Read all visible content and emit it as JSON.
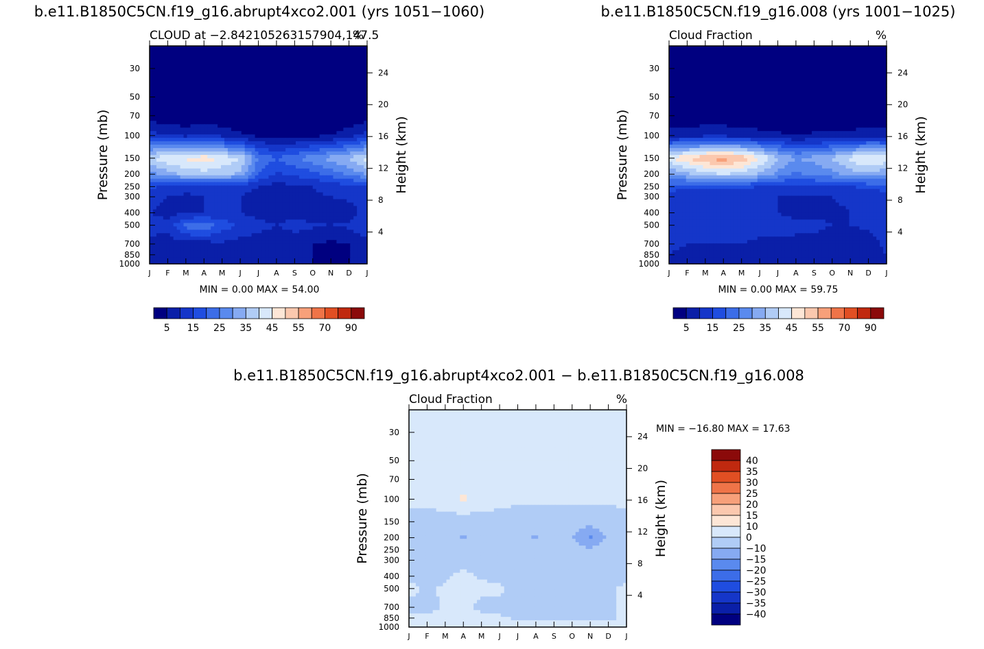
{
  "chart_data": [
    {
      "type": "heatmap",
      "id": "p1",
      "title": "b.e11.B1850C5CN.f19_g16.abrupt4xco2.001 (yrs 1051-1060)",
      "subtitle_left": "CLOUD at -2.842105263157904,147.5",
      "units": "%",
      "xlabel": "",
      "ylabel": "Pressure (mb)",
      "ylabel_right": "Height (km)",
      "x_ticks": [
        "J",
        "F",
        "M",
        "A",
        "M",
        "J",
        "J",
        "A",
        "S",
        "O",
        "N",
        "D",
        "J"
      ],
      "y_ticks": [
        "30",
        "50",
        "70",
        "100",
        "150",
        "200",
        "250",
        "300",
        "400",
        "500",
        "700",
        "850",
        "1000"
      ],
      "y_right_ticks": [
        "24",
        "20",
        "16",
        "12",
        "8",
        "4"
      ],
      "y_range_mb": [
        20,
        1000
      ],
      "stats": "MIN =    0.00  MAX =    54.00",
      "min": 0.0,
      "max": 54.0,
      "colorbar_labels": [
        "5",
        "15",
        "25",
        "35",
        "45",
        "55",
        "70",
        "90"
      ],
      "grid": [
        [
          0,
          0,
          0,
          0,
          0,
          0,
          0,
          0,
          0,
          0,
          0,
          0,
          0
        ],
        [
          0,
          0,
          0,
          0,
          0,
          0,
          0,
          0,
          0,
          0,
          0,
          0,
          0
        ],
        [
          2,
          1,
          0,
          1,
          0,
          0,
          0,
          0,
          0,
          0,
          0,
          0,
          2
        ],
        [
          12,
          10,
          9,
          11,
          9,
          6,
          4,
          3,
          3,
          4,
          5,
          8,
          12
        ],
        [
          40,
          44,
          46,
          48,
          44,
          40,
          25,
          20,
          24,
          28,
          32,
          36,
          42
        ],
        [
          28,
          33,
          36,
          38,
          36,
          34,
          20,
          14,
          16,
          18,
          22,
          26,
          30
        ],
        [
          16,
          14,
          12,
          12,
          14,
          12,
          10,
          8,
          9,
          10,
          12,
          13,
          14
        ],
        [
          11,
          10,
          9,
          10,
          12,
          10,
          8,
          6,
          8,
          9,
          10,
          11,
          11
        ],
        [
          10,
          9,
          9,
          10,
          11,
          10,
          8,
          7,
          8,
          6,
          5,
          8,
          12
        ],
        [
          12,
          11,
          22,
          24,
          18,
          14,
          12,
          10,
          12,
          11,
          10,
          11,
          14
        ],
        [
          9,
          8,
          8,
          8,
          9,
          8,
          7,
          6,
          7,
          5,
          4,
          5,
          8
        ],
        [
          8,
          7,
          7,
          8,
          8,
          7,
          7,
          6,
          6,
          5,
          4,
          5,
          7
        ],
        [
          5,
          5,
          5,
          5,
          5,
          5,
          5,
          5,
          5,
          5,
          5,
          5,
          5
        ]
      ]
    },
    {
      "type": "heatmap",
      "id": "p2",
      "title": "b.e11.B1850C5CN.f19_g16.008 (yrs 1001-1025)",
      "subtitle_left": "Cloud Fraction",
      "units": "%",
      "xlabel": "",
      "ylabel": "Pressure (mb)",
      "ylabel_right": "Height (km)",
      "x_ticks": [
        "J",
        "F",
        "M",
        "A",
        "M",
        "J",
        "J",
        "A",
        "S",
        "O",
        "N",
        "D",
        "J"
      ],
      "y_ticks": [
        "30",
        "50",
        "70",
        "100",
        "150",
        "200",
        "250",
        "300",
        "400",
        "500",
        "700",
        "850",
        "1000"
      ],
      "y_right_ticks": [
        "24",
        "20",
        "16",
        "12",
        "8",
        "4"
      ],
      "y_range_mb": [
        20,
        1000
      ],
      "stats": "MIN =    0.00  MAX =    59.75",
      "min": 0.0,
      "max": 59.75,
      "colorbar_labels": [
        "5",
        "15",
        "25",
        "35",
        "45",
        "55",
        "70",
        "90"
      ],
      "grid": [
        [
          0,
          0,
          0,
          0,
          0,
          0,
          0,
          0,
          0,
          0,
          0,
          0,
          0
        ],
        [
          0,
          0,
          0,
          0,
          0,
          0,
          0,
          0,
          0,
          0,
          0,
          0,
          0
        ],
        [
          1,
          1,
          1,
          1,
          1,
          0,
          0,
          0,
          0,
          0,
          0,
          0,
          1
        ],
        [
          8,
          8,
          9,
          9,
          8,
          7,
          6,
          5,
          6,
          6,
          7,
          8,
          8
        ],
        [
          44,
          50,
          55,
          58,
          54,
          46,
          36,
          30,
          32,
          36,
          42,
          46,
          44
        ],
        [
          30,
          34,
          38,
          40,
          38,
          34,
          28,
          24,
          26,
          28,
          32,
          34,
          30
        ],
        [
          18,
          16,
          16,
          16,
          16,
          15,
          14,
          13,
          14,
          15,
          15,
          16,
          18
        ],
        [
          12,
          11,
          11,
          11,
          11,
          11,
          10,
          10,
          10,
          10,
          11,
          11,
          12
        ],
        [
          12,
          11,
          11,
          11,
          11,
          10,
          10,
          9,
          9,
          9,
          10,
          11,
          12
        ],
        [
          12,
          13,
          14,
          13,
          13,
          12,
          12,
          11,
          11,
          10,
          10,
          11,
          12
        ],
        [
          11,
          10,
          10,
          10,
          10,
          9,
          9,
          9,
          9,
          8,
          7,
          8,
          11
        ],
        [
          10,
          9,
          9,
          9,
          9,
          9,
          8,
          8,
          8,
          8,
          7,
          8,
          10
        ],
        [
          6,
          6,
          6,
          6,
          6,
          6,
          6,
          6,
          6,
          6,
          6,
          6,
          6
        ]
      ]
    },
    {
      "type": "heatmap",
      "id": "p3",
      "title": "b.e11.B1850C5CN.f19_g16.abrupt4xco2.001 - b.e11.B1850C5CN.f19_g16.008",
      "subtitle_left": "Cloud Fraction",
      "units": "%",
      "xlabel": "",
      "ylabel": "Pressure (mb)",
      "ylabel_right": "Height (km)",
      "x_ticks": [
        "J",
        "F",
        "M",
        "A",
        "M",
        "J",
        "J",
        "A",
        "S",
        "O",
        "N",
        "D",
        "J"
      ],
      "y_ticks": [
        "30",
        "50",
        "70",
        "100",
        "150",
        "200",
        "250",
        "300",
        "400",
        "500",
        "700",
        "850",
        "1000"
      ],
      "y_right_ticks": [
        "24",
        "20",
        "16",
        "12",
        "8",
        "4"
      ],
      "y_range_mb": [
        20,
        1000
      ],
      "stats": "MIN = -16.80  MAX =   17.63",
      "min": -16.8,
      "max": 17.63,
      "colorbar_labels": [
        "40",
        "35",
        "30",
        "25",
        "20",
        "15",
        "10",
        "0",
        "-10",
        "-15",
        "-20",
        "-25",
        "-30",
        "-35",
        "-40"
      ],
      "grid": [
        [
          2,
          2,
          2,
          2,
          2,
          2,
          2,
          2,
          2,
          2,
          2,
          2,
          2
        ],
        [
          2,
          2,
          2,
          2,
          2,
          2,
          2,
          2,
          2,
          2,
          2,
          2,
          2
        ],
        [
          2,
          2,
          2,
          4,
          2,
          2,
          2,
          2,
          2,
          2,
          2,
          2,
          2
        ],
        [
          3,
          3,
          6,
          12,
          6,
          3,
          2,
          2,
          2,
          2,
          2,
          2,
          3
        ],
        [
          -4,
          -4,
          -6,
          -6,
          -5,
          -4,
          -5,
          -6,
          -5,
          -7,
          -8,
          -6,
          -4
        ],
        [
          -4,
          -5,
          -7,
          -11,
          -6,
          -5,
          -7,
          -11,
          -6,
          -10,
          -16,
          -9,
          -4
        ],
        [
          -3,
          -4,
          -5,
          -8,
          -5,
          -4,
          -5,
          -6,
          -4,
          -7,
          -9,
          -6,
          -3
        ],
        [
          -2,
          -3,
          -3,
          -3,
          -3,
          -2,
          -3,
          -3,
          -3,
          -3,
          -3,
          -3,
          -2
        ],
        [
          -2,
          -2,
          -1,
          2,
          -1,
          -2,
          -2,
          -2,
          -2,
          -2,
          -2,
          -2,
          -2
        ],
        [
          2,
          -1,
          1,
          2,
          2,
          1,
          -2,
          -2,
          -2,
          -2,
          -2,
          -2,
          2
        ],
        [
          -2,
          -2,
          1,
          2,
          -2,
          -2,
          -2,
          -2,
          -2,
          -2,
          -2,
          -2,
          2
        ],
        [
          1,
          1,
          2,
          2,
          2,
          1,
          -1,
          -1,
          -1,
          -1,
          -1,
          -1,
          1
        ],
        [
          2,
          2,
          2,
          2,
          2,
          2,
          2,
          2,
          2,
          2,
          2,
          2,
          2
        ]
      ]
    }
  ],
  "colormaps": {
    "abs_levels": [
      5,
      10,
      15,
      20,
      25,
      30,
      35,
      40,
      45,
      50,
      55,
      60,
      70,
      80,
      90
    ],
    "abs_colors": [
      "#000080",
      "#0a1fa8",
      "#1536c9",
      "#1f4de0",
      "#3c6de8",
      "#5a8aee",
      "#86aaf2",
      "#b0ccf6",
      "#d8e8fb",
      "#fde6d6",
      "#fbc8ae",
      "#f7a07a",
      "#ef7448",
      "#e14f23",
      "#c0290f",
      "#8b0a0a"
    ],
    "diff_levels": [
      -40,
      -35,
      -30,
      -25,
      -20,
      -15,
      -10,
      0,
      10,
      15,
      20,
      25,
      30,
      35,
      40
    ],
    "diff_colors": [
      "#000080",
      "#0a1fa8",
      "#1536c9",
      "#1f4de0",
      "#3c6de8",
      "#5a8aee",
      "#86aaf2",
      "#b0ccf6",
      "#d8e8fb",
      "#fde6d6",
      "#fbc8ae",
      "#f7a07a",
      "#ef7448",
      "#e14f23",
      "#c0290f",
      "#8b0a0a"
    ]
  }
}
